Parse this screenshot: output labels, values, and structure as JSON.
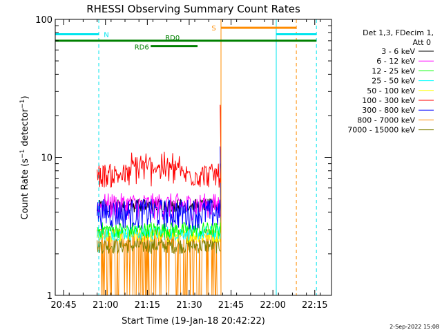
{
  "chart_data": {
    "type": "line",
    "title": "RHESSI Observing Summary Count Rates",
    "xlabel": "Start Time (19-Jan-18 20:42:22)",
    "ylabel_main": "Count Rate (s",
    "ylabel_sup1": "−1",
    "ylabel_mid": " detector",
    "ylabel_sup2": "−1",
    "ylabel_end": ")",
    "y_scale": "log",
    "ylim": [
      1,
      100
    ],
    "xlim_minutes": [
      20.7,
      22.35
    ],
    "x_ticks": [
      {
        "value": 20.75,
        "label": "20:45"
      },
      {
        "value": 21.0,
        "label": "21:00"
      },
      {
        "value": 21.25,
        "label": "21:15"
      },
      {
        "value": 21.5,
        "label": "21:30"
      },
      {
        "value": 21.75,
        "label": "21:45"
      },
      {
        "value": 22.0,
        "label": "22:00"
      },
      {
        "value": 22.25,
        "label": "22:15"
      }
    ],
    "y_ticks": [
      {
        "value": 1,
        "label": "1"
      },
      {
        "value": 10,
        "label": "10"
      },
      {
        "value": 100,
        "label": "100"
      }
    ],
    "legend_header": [
      "Det 1,3, FDecim 1,",
      "Att 0"
    ],
    "legend_position": "right",
    "series": [
      {
        "name": "3 - 6 keV",
        "color": "#000000",
        "level": [
          4.0,
          5.0
        ]
      },
      {
        "name": "6 - 12 keV",
        "color": "#ff00ff",
        "level": [
          3.5,
          5.5
        ]
      },
      {
        "name": "12 - 25 keV",
        "color": "#00ff00",
        "level": [
          2.6,
          3.4
        ]
      },
      {
        "name": "25 - 50 keV",
        "color": "#00ffff",
        "level": [
          2.5,
          3.2
        ]
      },
      {
        "name": "50 - 100 keV",
        "color": "#ffff00",
        "level": [
          2.4,
          3.0
        ]
      },
      {
        "name": "100 - 300 keV",
        "color": "#ff0000",
        "level": [
          6.0,
          10.0
        ]
      },
      {
        "name": "300 - 800 keV",
        "color": "#0000ff",
        "level": [
          3.0,
          5.0
        ]
      },
      {
        "name": "800 - 7000 keV",
        "color": "#ff8c00",
        "level": [
          1.0,
          3.0
        ]
      },
      {
        "name": "7000 - 15000 keV",
        "color": "#808000",
        "level": [
          2.0,
          2.6
        ]
      }
    ],
    "data_interval": {
      "start": 20.95,
      "end": 21.69
    },
    "flags": [
      {
        "label": "N",
        "color": "#00e5ee",
        "y": 78,
        "segments": [
          [
            20.7,
            20.96
          ],
          [
            22.02,
            22.26
          ]
        ]
      },
      {
        "label": "S",
        "color": "#ff8c00",
        "y": 87,
        "segments": [
          [
            21.69,
            22.14
          ]
        ]
      },
      {
        "label": "RD0",
        "color": "#008000",
        "y": 70,
        "segments": [
          [
            20.7,
            21.55
          ],
          [
            21.55,
            22.26
          ]
        ]
      },
      {
        "label": "RD6",
        "color": "#008000",
        "y": 64,
        "segments": [
          [
            21.27,
            21.55
          ]
        ]
      }
    ],
    "vlines": [
      {
        "x": 20.7,
        "color": "#00e5ee",
        "style": "solid"
      },
      {
        "x": 20.96,
        "color": "#00e5ee",
        "style": "dashed"
      },
      {
        "x": 21.69,
        "color": "#ff8c00",
        "style": "solid"
      },
      {
        "x": 22.02,
        "color": "#00e5ee",
        "style": "solid"
      },
      {
        "x": 22.14,
        "color": "#ff8c00",
        "style": "dashed"
      },
      {
        "x": 22.26,
        "color": "#00e5ee",
        "style": "dashed"
      }
    ],
    "footer_date": "2-Sep-2022 15:08"
  }
}
